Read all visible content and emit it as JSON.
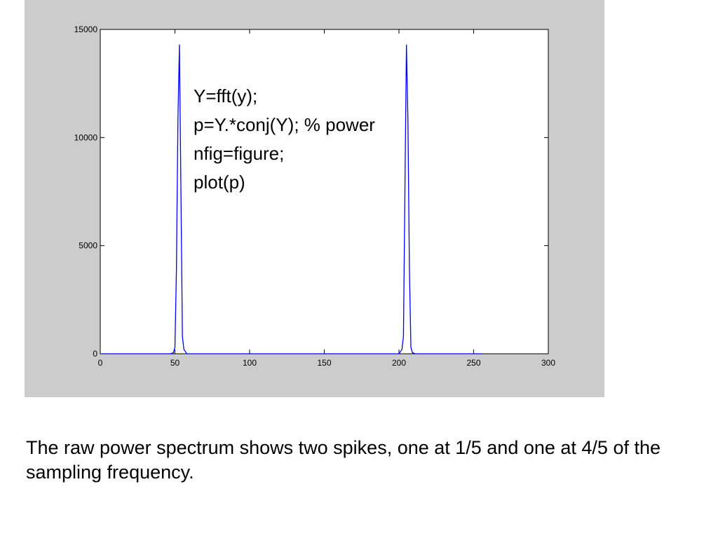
{
  "chart_data": {
    "type": "line",
    "x": [
      1,
      47,
      49,
      50,
      51,
      52,
      53,
      54,
      55,
      56,
      58,
      200,
      202,
      203,
      204,
      205,
      206,
      207,
      208,
      209,
      211,
      256
    ],
    "series": [
      {
        "color": "#0000ff",
        "values": [
          0,
          0,
          50,
          300,
          3900,
          10800,
          14300,
          7600,
          800,
          200,
          0,
          0,
          200,
          800,
          7600,
          14300,
          10800,
          3900,
          300,
          50,
          0,
          0
        ]
      }
    ],
    "xlim": [
      0,
      300
    ],
    "xticks": [
      0,
      50,
      100,
      150,
      200,
      250,
      300
    ],
    "ylim": [
      0,
      15000
    ],
    "yticks": [
      0,
      5000,
      10000,
      15000
    ],
    "annotations": [
      "Y=fft(y);",
      "p=Y.*conj(Y); % power",
      "nfig=figure;",
      "plot(p)"
    ]
  },
  "caption": "The raw power spectrum shows two spikes, one at 1/5 and one at 4/5 of the sampling frequency."
}
